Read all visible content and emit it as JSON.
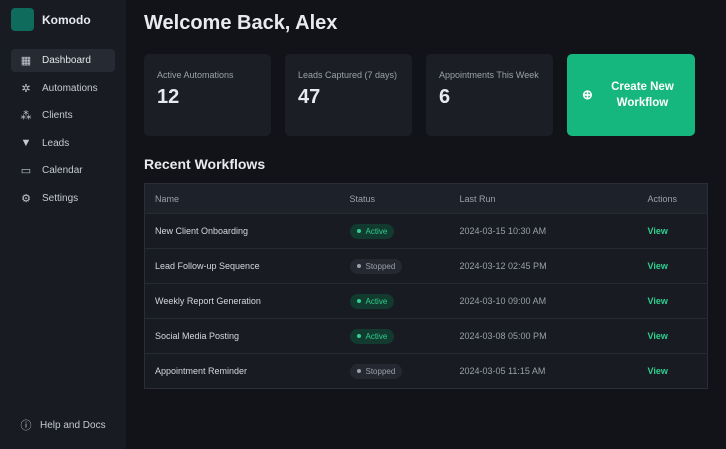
{
  "app": {
    "name": "Komodo"
  },
  "sidebar": {
    "items": [
      {
        "label": "Dashboard",
        "icon": "dashboard-icon"
      },
      {
        "label": "Automations",
        "icon": "automations-icon"
      },
      {
        "label": "Clients",
        "icon": "clients-icon"
      },
      {
        "label": "Leads",
        "icon": "filter-icon"
      },
      {
        "label": "Calendar",
        "icon": "calendar-icon"
      },
      {
        "label": "Settings",
        "icon": "gear-icon"
      }
    ],
    "help": "Help and Docs"
  },
  "header": {
    "title": "Welcome Back, Alex"
  },
  "stats": [
    {
      "label": "Active Automations",
      "value": "12"
    },
    {
      "label": "Leads Captured (7 days)",
      "value": "47"
    },
    {
      "label": "Appointments This Week",
      "value": "6"
    }
  ],
  "cta": {
    "label": "Create New Workflow"
  },
  "workflows": {
    "title": "Recent Workflows",
    "columns": [
      "Name",
      "Status",
      "Last Run",
      "Actions"
    ],
    "rows": [
      {
        "name": "New Client Onboarding",
        "status": "Active",
        "last": "2024-03-15 10:30 AM",
        "action": "View"
      },
      {
        "name": "Lead Follow-up Sequence",
        "status": "Stopped",
        "last": "2024-03-12 02:45 PM",
        "action": "View"
      },
      {
        "name": "Weekly Report Generation",
        "status": "Active",
        "last": "2024-03-10 09:00 AM",
        "action": "View"
      },
      {
        "name": "Social Media Posting",
        "status": "Active",
        "last": "2024-03-08 05:00 PM",
        "action": "View"
      },
      {
        "name": "Appointment Reminder",
        "status": "Stopped",
        "last": "2024-03-05 11:15 AM",
        "action": "View"
      }
    ]
  },
  "colors": {
    "accent": "#16b67f",
    "active": "#2fd08f"
  }
}
